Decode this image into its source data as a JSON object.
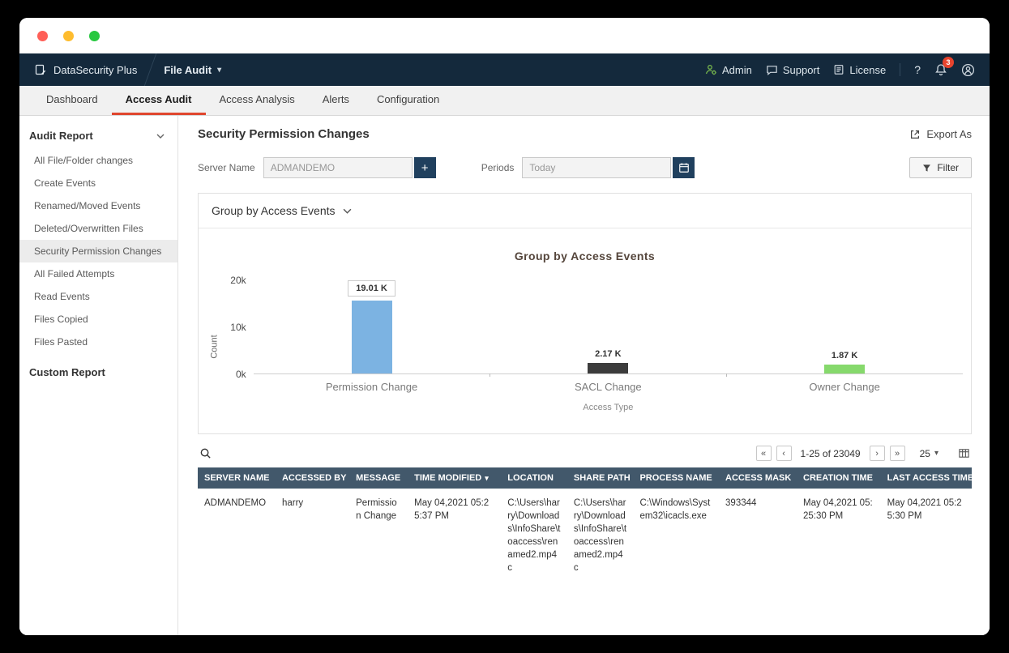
{
  "window": {
    "traffic_lights": {
      "close": "#ff5f57",
      "minimize": "#febc2e",
      "zoom": "#28c840"
    }
  },
  "header": {
    "brand": "DataSecurity Plus",
    "module": "File Audit",
    "admin": "Admin",
    "support": "Support",
    "license": "License",
    "help": "?",
    "notification_count": "3"
  },
  "tabs": [
    {
      "label": "Dashboard"
    },
    {
      "label": "Access Audit"
    },
    {
      "label": "Access Analysis"
    },
    {
      "label": "Alerts"
    },
    {
      "label": "Configuration"
    }
  ],
  "sidebar": {
    "section_title": "Audit Report",
    "items": [
      "All File/Folder changes",
      "Create Events",
      "Renamed/Moved Events",
      "Deleted/Overwritten Files",
      "Security Permission Changes",
      "All Failed Attempts",
      "Read Events",
      "Files Copied",
      "Files Pasted"
    ],
    "custom_report": "Custom Report"
  },
  "main": {
    "title": "Security Permission Changes",
    "export_label": "Export As",
    "filters": {
      "server_name_label": "Server Name",
      "server_name_value": "ADMANDEMO",
      "periods_label": "Periods",
      "periods_value": "Today",
      "filter_button": "Filter"
    },
    "group_by_label": "Group by Access Events"
  },
  "chart_data": {
    "type": "bar",
    "title": "Group by Access Events",
    "categories": [
      "Permission Change",
      "SACL Change",
      "Owner Change"
    ],
    "values": [
      19010,
      2170,
      1870
    ],
    "value_labels": [
      "19.01 K",
      "2.17 K",
      "1.87 K"
    ],
    "colors": [
      "#7cb3e2",
      "#3c3c3c",
      "#86d96c"
    ],
    "xlabel": "Access Type",
    "ylabel": "Count",
    "ylim": [
      0,
      20000
    ],
    "yticks": [
      "20k",
      "10k",
      "0k"
    ],
    "legend": "off",
    "grid": "off"
  },
  "toolbar": {
    "pagination_range": "1-25 of 23049",
    "page_size": "25"
  },
  "table": {
    "columns": [
      "SERVER NAME",
      "ACCESSED BY",
      "MESSAGE",
      "TIME MODIFIED",
      "LOCATION",
      "SHARE PATH",
      "PROCESS NAME",
      "ACCESS MASK",
      "CREATION TIME",
      "LAST ACCESS TIME"
    ],
    "rows": [
      {
        "server_name": "ADMANDEMO",
        "accessed_by": "harry",
        "message": "Permission Change",
        "time_modified": "May 04,2021 05:25:37 PM",
        "location": "C:\\Users\\harry\\Downloads\\InfoShare\\toaccess\\renamed2.mp4c",
        "share_path": "C:\\Users\\harry\\Downloads\\InfoShare\\toaccess\\renamed2.mp4c",
        "process_name": "C:\\Windows\\System32\\icacls.exe",
        "access_mask": "393344",
        "creation_time": "May 04,2021 05:25:30 PM",
        "last_access_time": "May 04,2021 05:25:30 PM"
      }
    ]
  }
}
